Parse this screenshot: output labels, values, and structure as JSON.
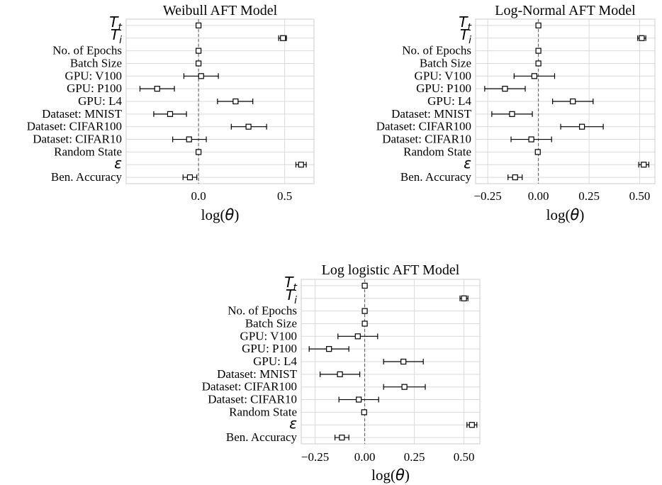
{
  "chart_data": [
    {
      "type": "scatter",
      "title": "Weibull AFT Model",
      "xlabel_text": "log(",
      "xlabel_symbol": "θ",
      "xlabel_close": ")",
      "xticks": [
        {
          "v": 0.0,
          "label": "0.0"
        },
        {
          "v": 0.5,
          "label": "0.5"
        }
      ],
      "xlim": [
        -0.42,
        0.67
      ],
      "grid": true,
      "reference_line": 0,
      "categories": [
        "T_t",
        "T_i",
        "No. of Epochs",
        "Batch Size",
        "GPU: V100",
        "GPU: P100",
        "GPU: L4",
        "Dataset: MNIST",
        "Dataset: CIFAR100",
        "Dataset: CIFAR10",
        "Random State",
        "ε",
        "Ben. Accuracy"
      ],
      "coef": [
        0.0,
        0.49,
        0.0,
        0.0,
        0.015,
        -0.24,
        0.215,
        -0.165,
        0.29,
        -0.055,
        0.0,
        0.595,
        -0.05
      ],
      "lower": [
        -0.005,
        0.465,
        -0.003,
        -0.003,
        -0.085,
        -0.34,
        0.11,
        -0.26,
        0.19,
        -0.15,
        -0.003,
        0.565,
        -0.09
      ],
      "upper": [
        0.005,
        0.51,
        0.003,
        0.003,
        0.115,
        -0.14,
        0.315,
        -0.07,
        0.395,
        0.045,
        0.003,
        0.625,
        -0.01
      ]
    },
    {
      "type": "scatter",
      "title": "Log-Normal AFT Model",
      "xlabel_text": "log(",
      "xlabel_symbol": "θ",
      "xlabel_close": ")",
      "xticks": [
        {
          "v": -0.25,
          "label": "−0.25"
        },
        {
          "v": 0.0,
          "label": "0.00"
        },
        {
          "v": 0.25,
          "label": "0.25"
        },
        {
          "v": 0.5,
          "label": "0.50"
        }
      ],
      "xlim": [
        -0.31,
        0.575
      ],
      "grid": true,
      "reference_line": 0,
      "categories": [
        "T_t",
        "T_i",
        "No. of Epochs",
        "Batch Size",
        "GPU: V100",
        "GPU: P100",
        "GPU: L4",
        "Dataset: MNIST",
        "Dataset: CIFAR100",
        "Dataset: CIFAR10",
        "Random State",
        "ε",
        "Ben. Accuracy"
      ],
      "coef": [
        0.0,
        0.51,
        0.0,
        0.0,
        -0.02,
        -0.165,
        0.17,
        -0.13,
        0.215,
        -0.035,
        -0.003,
        0.52,
        -0.115
      ],
      "lower": [
        -0.004,
        0.49,
        -0.003,
        -0.003,
        -0.12,
        -0.265,
        0.07,
        -0.23,
        0.11,
        -0.135,
        -0.006,
        0.495,
        -0.15
      ],
      "upper": [
        0.004,
        0.53,
        0.003,
        0.003,
        0.08,
        -0.065,
        0.27,
        -0.03,
        0.32,
        0.065,
        0.0,
        0.545,
        -0.08
      ]
    },
    {
      "type": "scatter",
      "title": "Log logistic AFT Model",
      "xlabel_text": "log(",
      "xlabel_symbol": "θ",
      "xlabel_close": ")",
      "xticks": [
        {
          "v": -0.25,
          "label": "−0.25"
        },
        {
          "v": 0.0,
          "label": "0.00"
        },
        {
          "v": 0.25,
          "label": "0.25"
        },
        {
          "v": 0.5,
          "label": "0.50"
        }
      ],
      "xlim": [
        -0.32,
        0.58
      ],
      "grid": true,
      "reference_line": 0,
      "categories": [
        "T_t",
        "T_i",
        "No. of Epochs",
        "Batch Size",
        "GPU: V100",
        "GPU: P100",
        "GPU: L4",
        "Dataset: MNIST",
        "Dataset: CIFAR100",
        "Dataset: CIFAR10",
        "Random State",
        "ε",
        "Ben. Accuracy"
      ],
      "coef": [
        0.0,
        0.5,
        0.0,
        0.0,
        -0.035,
        -0.18,
        0.195,
        -0.125,
        0.2,
        -0.03,
        -0.003,
        0.54,
        -0.115
      ],
      "lower": [
        -0.004,
        0.48,
        -0.003,
        -0.003,
        -0.135,
        -0.28,
        0.095,
        -0.225,
        0.095,
        -0.13,
        -0.006,
        0.515,
        -0.15
      ],
      "upper": [
        0.004,
        0.52,
        0.003,
        0.003,
        0.065,
        -0.08,
        0.295,
        -0.025,
        0.305,
        0.07,
        0.0,
        0.565,
        -0.08
      ]
    }
  ]
}
